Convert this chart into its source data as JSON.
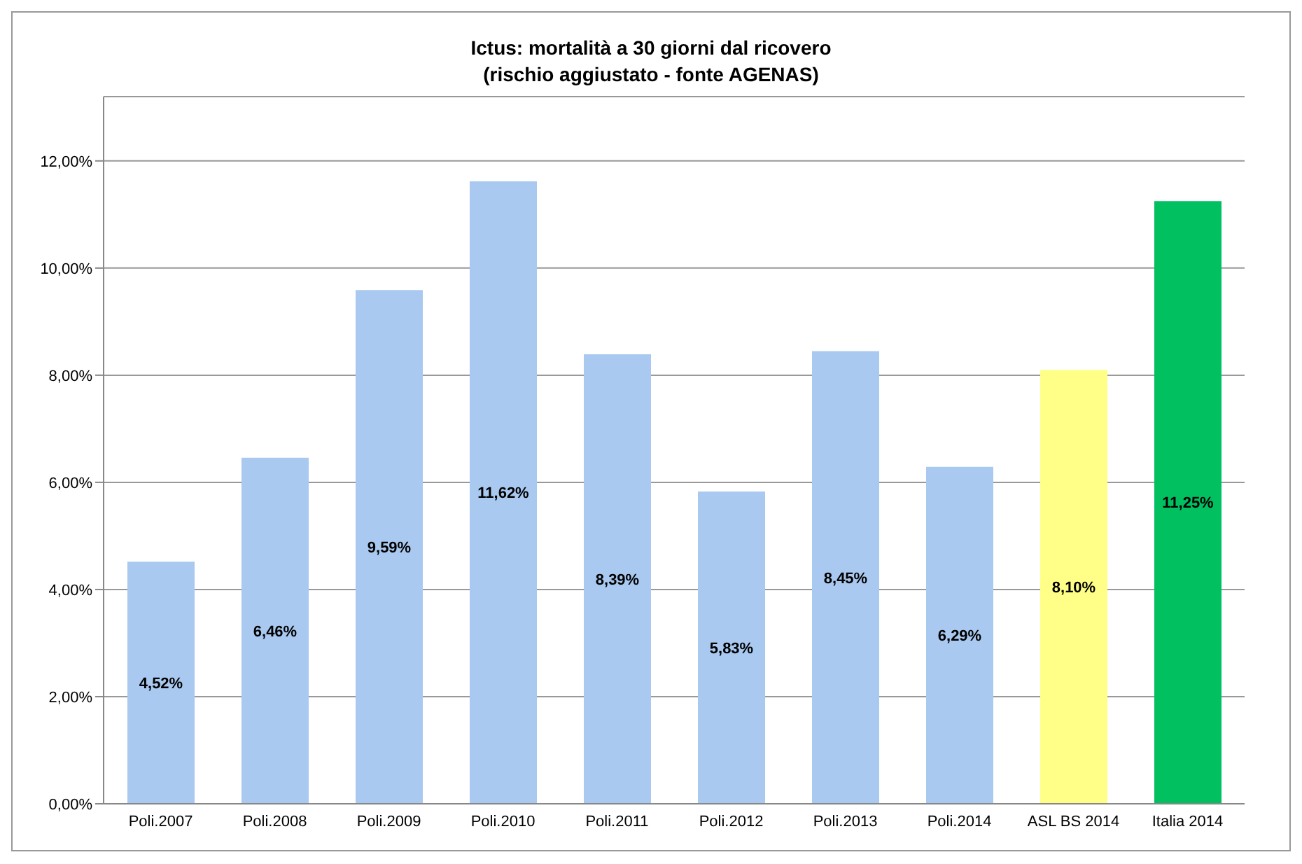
{
  "chart_data": {
    "type": "bar",
    "title": "Ictus: mortalità a 30 giorni dal ricovero\n(rischio aggiustato - fonte AGENAS)",
    "categories": [
      "Poli.2007",
      "Poli.2008",
      "Poli.2009",
      "Poli.2010",
      "Poli.2011",
      "Poli.2012",
      "Poli.2013",
      "Poli.2014",
      "ASL BS 2014",
      "Italia 2014"
    ],
    "values": [
      4.52,
      6.46,
      9.59,
      11.62,
      8.39,
      5.83,
      8.45,
      6.29,
      8.1,
      11.25
    ],
    "colors": [
      "#a9c9f0",
      "#a9c9f0",
      "#a9c9f0",
      "#a9c9f0",
      "#a9c9f0",
      "#a9c9f0",
      "#a9c9f0",
      "#a9c9f0",
      "#ffff88",
      "#00c060"
    ],
    "value_labels": [
      "4,52%",
      "6,46%",
      "9,59%",
      "11,62%",
      "8,39%",
      "5,83%",
      "8,45%",
      "6,29%",
      "8,10%",
      "11,25%"
    ],
    "ylim": [
      0,
      13.2
    ],
    "yticks": [
      {
        "value": 0,
        "label": "0,00%"
      },
      {
        "value": 2,
        "label": "2,00%"
      },
      {
        "value": 4,
        "label": "4,00%"
      },
      {
        "value": 6,
        "label": "6,00%"
      },
      {
        "value": 8,
        "label": "8,00%"
      },
      {
        "value": 10,
        "label": "10,00%"
      },
      {
        "value": 12,
        "label": "12,00%"
      }
    ],
    "grid": "y"
  }
}
